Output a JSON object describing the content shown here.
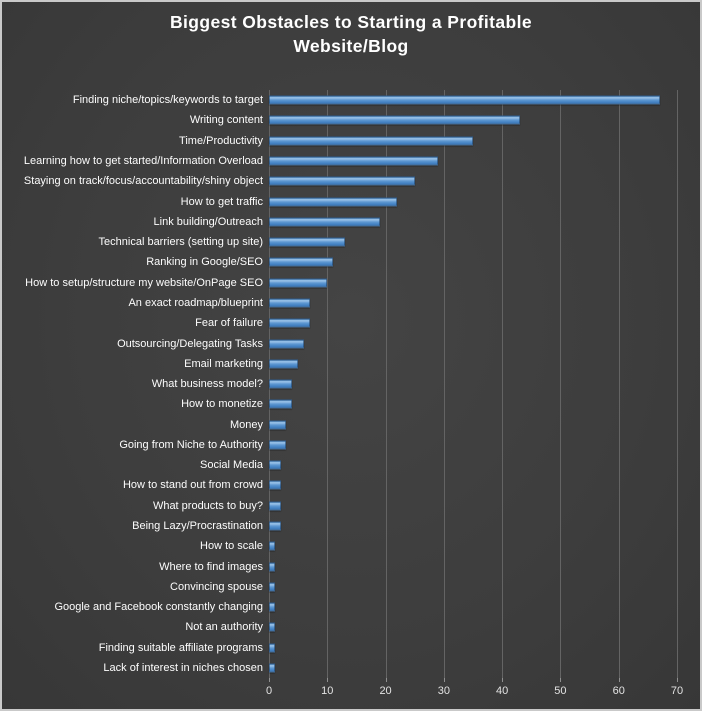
{
  "chart_data": {
    "type": "bar",
    "orientation": "horizontal",
    "title": "Biggest Obstacles to Starting a Profitable Website/Blog",
    "categories": [
      "Finding niche/topics/keywords to target",
      "Writing content",
      "Time/Productivity",
      "Learning how to get started/Information Overload",
      "Staying on track/focus/accountability/shiny object",
      "How to get traffic",
      "Link building/Outreach",
      "Technical barriers (setting up site)",
      "Ranking in Google/SEO",
      "How to setup/structure my website/OnPage SEO",
      "An exact roadmap/blueprint",
      "Fear of failure",
      "Outsourcing/Delegating Tasks",
      "Email marketing",
      "What business model?",
      "How to monetize",
      "Money",
      "Going from Niche to Authority",
      "Social Media",
      "How to stand out from crowd",
      "What products to buy?",
      "Being Lazy/Procrastination",
      "How to scale",
      "Where to find images",
      "Convincing spouse",
      "Google and Facebook constantly changing",
      "Not an authority",
      "Finding suitable affiliate programs",
      "Lack of interest in niches chosen"
    ],
    "values": [
      67,
      43,
      35,
      29,
      25,
      22,
      19,
      13,
      11,
      10,
      7,
      7,
      6,
      5,
      4,
      4,
      3,
      3,
      2,
      2,
      2,
      2,
      1,
      1,
      1,
      1,
      1,
      1,
      1
    ],
    "xlabel": "",
    "ylabel": "",
    "xlim": [
      0,
      70
    ],
    "xticks": [
      0,
      10,
      20,
      30,
      40,
      50,
      60,
      70
    ],
    "grid": true,
    "legend": false,
    "styles": {
      "background": "#3e3e3e",
      "bar_color": "#5b9bd5",
      "gridline_color": "#646464",
      "title_color": "#ffffff",
      "category_label_color": "#fdfdfd",
      "axis_tick_label_color": "#e3e3e3",
      "frame_border_color": "#c9c9c9"
    }
  }
}
